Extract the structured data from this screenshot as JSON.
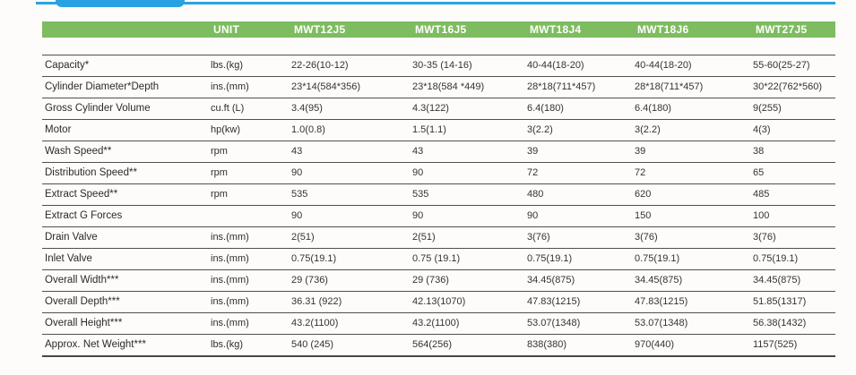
{
  "decor": {
    "accent_blue": "#29a2e4"
  },
  "table": {
    "header": {
      "bg": "#7ebc60",
      "text_color": "#ffffff",
      "columns": [
        "",
        "UNIT",
        "MWT12J5",
        "MWT16J5",
        "MWT18J4",
        "MWT18J6",
        "MWT27J5"
      ]
    },
    "rows": [
      {
        "label": "Capacity*",
        "unit": "lbs.(kg)",
        "values": [
          "22-26(10-12)",
          "30-35 (14-16)",
          "40-44(18-20)",
          "40-44(18-20)",
          "55-60(25-27)"
        ]
      },
      {
        "label": "Cylinder Diameter*Depth",
        "unit": "ins.(mm)",
        "values": [
          "23*14(584*356)",
          "23*18(584 *449)",
          "28*18(711*457)",
          "28*18(711*457)",
          "30*22(762*560)"
        ]
      },
      {
        "label": "Gross Cylinder Volume",
        "unit": "cu.ft (L)",
        "values": [
          "3.4(95)",
          "4.3(122)",
          "6.4(180)",
          "6.4(180)",
          "9(255)"
        ]
      },
      {
        "label": "Motor",
        "unit": "hp(kw)",
        "values": [
          "1.0(0.8)",
          "1.5(1.1)",
          "3(2.2)",
          "3(2.2)",
          "4(3)"
        ]
      },
      {
        "label": "Wash Speed**",
        "unit": "rpm",
        "values": [
          "43",
          "43",
          "39",
          "39",
          "38"
        ]
      },
      {
        "label": "Distribution Speed**",
        "unit": "rpm",
        "values": [
          "90",
          "90",
          "72",
          "72",
          "65"
        ]
      },
      {
        "label": "Extract Speed**",
        "unit": "rpm",
        "values": [
          "535",
          "535",
          "480",
          "620",
          "485"
        ]
      },
      {
        "label": "Extract G Forces",
        "unit": "",
        "values": [
          "90",
          "90",
          "90",
          "150",
          "100"
        ]
      },
      {
        "label": "Drain Valve",
        "unit": "ins.(mm)",
        "values": [
          "2(51)",
          "2(51)",
          "3(76)",
          "3(76)",
          "3(76)"
        ]
      },
      {
        "label": "Inlet Valve",
        "unit": "ins.(mm)",
        "values": [
          "0.75(19.1)",
          "0.75 (19.1)",
          "0.75(19.1)",
          "0.75(19.1)",
          "0.75(19.1)"
        ]
      },
      {
        "label": "Overall Width***",
        "unit": "ins.(mm)",
        "values": [
          "29 (736)",
          "29 (736)",
          "34.45(875)",
          "34.45(875)",
          "34.45(875)"
        ]
      },
      {
        "label": "Overall Depth***",
        "unit": "ins.(mm)",
        "values": [
          "36.31 (922)",
          "42.13(1070)",
          "47.83(1215)",
          "47.83(1215)",
          "51.85(1317)"
        ]
      },
      {
        "label": "Overall Height***",
        "unit": "ins.(mm)",
        "values": [
          "43.2(1100)",
          "43.2(1100)",
          "53.07(1348)",
          "53.07(1348)",
          "56.38(1432)"
        ]
      },
      {
        "label": "Approx. Net Weight***",
        "unit": "lbs.(kg)",
        "values": [
          "540 (245)",
          "564(256)",
          "838(380)",
          "970(440)",
          "1157(525)"
        ]
      }
    ]
  }
}
